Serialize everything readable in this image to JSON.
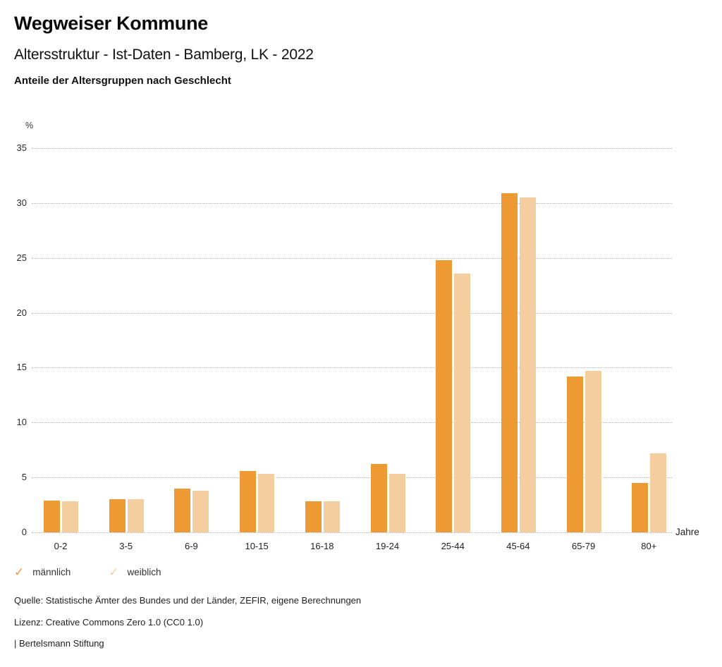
{
  "header": {
    "title": "Wegweiser Kommune",
    "subtitle": "Altersstruktur - Ist-Daten - Bamberg, LK - 2022",
    "description": "Anteile der Altersgruppen nach Geschlecht"
  },
  "chart_data": {
    "type": "bar",
    "title": "Anteile der Altersgruppen nach Geschlecht",
    "categories": [
      "0-2",
      "3-5",
      "6-9",
      "10-15",
      "16-18",
      "19-24",
      "25-44",
      "45-64",
      "65-79",
      "80+"
    ],
    "series": [
      {
        "name": "männlich",
        "color": "#ED9A35",
        "values": [
          2.9,
          3.0,
          4.0,
          5.6,
          2.8,
          6.2,
          24.8,
          30.9,
          14.2,
          4.5
        ]
      },
      {
        "name": "weiblich",
        "color": "#F5CE9F",
        "values": [
          2.8,
          3.0,
          3.8,
          5.3,
          2.8,
          5.3,
          23.6,
          30.5,
          14.7,
          7.2
        ]
      }
    ],
    "xlabel": "Jahre",
    "ylabel": "%",
    "ylim": [
      0,
      35
    ],
    "yticks": [
      0,
      5,
      10,
      15,
      20,
      25,
      30,
      35
    ],
    "grid": "horizontal-dotted",
    "legend_position": "bottom-left",
    "legend_marker": "check"
  },
  "legend": {
    "check_glyph": "✓"
  },
  "footer": {
    "source": "Quelle: Statistische Ämter des Bundes und der Länder, ZEFIR, eigene Berechnungen",
    "license": "Lizenz: Creative Commons Zero 1.0 (CC0 1.0)",
    "attribution": "| Bertelsmann Stiftung"
  }
}
